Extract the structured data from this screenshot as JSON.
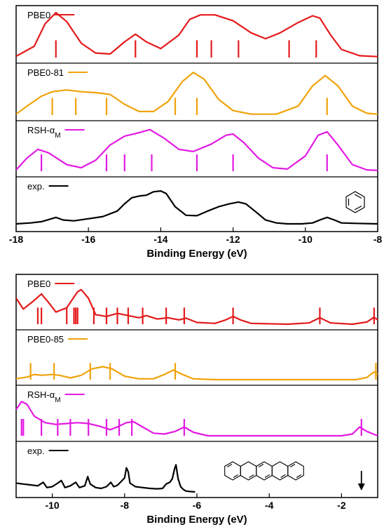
{
  "chart_data": [
    {
      "type": "line",
      "title": "",
      "xlabel": "Binding Energy (eV)",
      "xlim": [
        -18,
        -8
      ],
      "xticks": [
        "-18",
        "-16",
        "-14",
        "-12",
        "-10",
        "-8"
      ],
      "molecule": "benzene",
      "panels": [
        {
          "label": "PBE0",
          "color": "#e41a1c",
          "sticks": [
            -16.9,
            -14.7,
            -13.0,
            -12.6,
            -11.85,
            -10.45,
            -9.7
          ],
          "curve": [
            [
              -18,
              0.03
            ],
            [
              -17.5,
              0.25
            ],
            [
              -17.2,
              0.75
            ],
            [
              -16.9,
              1.0
            ],
            [
              -16.6,
              0.8
            ],
            [
              -16.2,
              0.32
            ],
            [
              -15.8,
              0.1
            ],
            [
              -15.4,
              0.08
            ],
            [
              -15.0,
              0.35
            ],
            [
              -14.7,
              0.52
            ],
            [
              -14.4,
              0.35
            ],
            [
              -14.0,
              0.2
            ],
            [
              -13.5,
              0.5
            ],
            [
              -13.2,
              0.85
            ],
            [
              -12.9,
              0.95
            ],
            [
              -12.5,
              0.95
            ],
            [
              -12.0,
              0.82
            ],
            [
              -11.5,
              0.55
            ],
            [
              -11.1,
              0.42
            ],
            [
              -10.7,
              0.55
            ],
            [
              -10.2,
              0.78
            ],
            [
              -9.8,
              0.93
            ],
            [
              -9.6,
              0.88
            ],
            [
              -9.3,
              0.5
            ],
            [
              -9.0,
              0.18
            ],
            [
              -8.5,
              0.04
            ],
            [
              -8,
              0.02
            ]
          ]
        },
        {
          "label": "PBE0-81",
          "color": "#f0a30a",
          "sticks": [
            -17.0,
            -16.35,
            -15.5,
            -13.6,
            -13.0,
            -9.4
          ],
          "curve": [
            [
              -18,
              0.02
            ],
            [
              -17.7,
              0.2
            ],
            [
              -17.3,
              0.42
            ],
            [
              -17.0,
              0.52
            ],
            [
              -16.6,
              0.56
            ],
            [
              -16.2,
              0.52
            ],
            [
              -15.8,
              0.5
            ],
            [
              -15.4,
              0.46
            ],
            [
              -15.0,
              0.24
            ],
            [
              -14.6,
              0.08
            ],
            [
              -14.2,
              0.08
            ],
            [
              -13.8,
              0.3
            ],
            [
              -13.4,
              0.75
            ],
            [
              -13.1,
              0.95
            ],
            [
              -12.8,
              0.8
            ],
            [
              -12.4,
              0.35
            ],
            [
              -12.0,
              0.1
            ],
            [
              -11.5,
              0.02
            ],
            [
              -10.8,
              0.02
            ],
            [
              -10.2,
              0.2
            ],
            [
              -9.8,
              0.65
            ],
            [
              -9.45,
              0.88
            ],
            [
              -9.1,
              0.65
            ],
            [
              -8.7,
              0.2
            ],
            [
              -8.3,
              0.04
            ],
            [
              -8,
              0.02
            ]
          ]
        },
        {
          "label": "RSH-α",
          "label_sub": "M",
          "color": "#e31ae3",
          "sticks": [
            -17.3,
            -15.5,
            -15.0,
            -14.25,
            -13.0,
            -12.0,
            -9.4
          ],
          "curve": [
            [
              -18,
              0.03
            ],
            [
              -17.7,
              0.3
            ],
            [
              -17.4,
              0.5
            ],
            [
              -17.1,
              0.42
            ],
            [
              -16.6,
              0.15
            ],
            [
              -16.2,
              0.08
            ],
            [
              -15.8,
              0.25
            ],
            [
              -15.4,
              0.6
            ],
            [
              -15.0,
              0.8
            ],
            [
              -14.6,
              0.88
            ],
            [
              -14.3,
              0.95
            ],
            [
              -13.9,
              0.75
            ],
            [
              -13.5,
              0.5
            ],
            [
              -13.1,
              0.45
            ],
            [
              -12.6,
              0.62
            ],
            [
              -12.2,
              0.82
            ],
            [
              -12.0,
              0.85
            ],
            [
              -11.7,
              0.65
            ],
            [
              -11.3,
              0.3
            ],
            [
              -10.9,
              0.08
            ],
            [
              -10.5,
              0.05
            ],
            [
              -10.0,
              0.35
            ],
            [
              -9.65,
              0.82
            ],
            [
              -9.4,
              0.9
            ],
            [
              -9.1,
              0.6
            ],
            [
              -8.7,
              0.15
            ],
            [
              -8.3,
              0.03
            ],
            [
              -8,
              0.02
            ]
          ]
        },
        {
          "label": "exp.",
          "color": "#000000",
          "sticks": [],
          "curve": [
            [
              -18,
              0.05
            ],
            [
              -17.6,
              0.07
            ],
            [
              -17.3,
              0.1
            ],
            [
              -17.1,
              0.15
            ],
            [
              -16.9,
              0.2
            ],
            [
              -16.7,
              0.14
            ],
            [
              -16.4,
              0.12
            ],
            [
              -16.0,
              0.17
            ],
            [
              -15.6,
              0.22
            ],
            [
              -15.2,
              0.35
            ],
            [
              -15.0,
              0.52
            ],
            [
              -14.8,
              0.66
            ],
            [
              -14.6,
              0.7
            ],
            [
              -14.4,
              0.72
            ],
            [
              -14.2,
              0.8
            ],
            [
              -14.0,
              0.82
            ],
            [
              -13.85,
              0.76
            ],
            [
              -13.6,
              0.45
            ],
            [
              -13.3,
              0.25
            ],
            [
              -13.0,
              0.24
            ],
            [
              -12.7,
              0.35
            ],
            [
              -12.4,
              0.45
            ],
            [
              -12.1,
              0.52
            ],
            [
              -11.85,
              0.56
            ],
            [
              -11.65,
              0.52
            ],
            [
              -11.4,
              0.35
            ],
            [
              -11.1,
              0.14
            ],
            [
              -10.8,
              0.07
            ],
            [
              -10.5,
              0.05
            ],
            [
              -10.1,
              0.05
            ],
            [
              -9.8,
              0.07
            ],
            [
              -9.6,
              0.14
            ],
            [
              -9.4,
              0.2
            ],
            [
              -9.2,
              0.14
            ],
            [
              -9.0,
              0.07
            ],
            [
              -8.6,
              0.06
            ],
            [
              -8,
              0.05
            ]
          ]
        }
      ]
    },
    {
      "type": "line",
      "title": "",
      "xlabel": "Binding Energy (eV)",
      "xlim": [
        -11,
        -1
      ],
      "xticks": [
        "-10",
        "-8",
        "-6",
        "-4",
        "-2"
      ],
      "molecule": "pentacene",
      "panels": [
        {
          "label": "PBE0",
          "color": "#e41a1c",
          "sticks": [
            -10.4,
            -10.3,
            -9.6,
            -9.4,
            -9.35,
            -9.3,
            -8.85,
            -8.5,
            -8.2,
            -7.9,
            -7.5,
            -6.85,
            -6.35,
            -5.0,
            -2.6,
            -1.1
          ],
          "curve": [
            [
              -11,
              0.6
            ],
            [
              -10.8,
              0.35
            ],
            [
              -10.5,
              0.55
            ],
            [
              -10.3,
              0.7
            ],
            [
              -10.1,
              0.5
            ],
            [
              -9.9,
              0.28
            ],
            [
              -9.6,
              0.38
            ],
            [
              -9.3,
              0.75
            ],
            [
              -9.2,
              0.8
            ],
            [
              -9.0,
              0.6
            ],
            [
              -8.8,
              0.22
            ],
            [
              -8.5,
              0.18
            ],
            [
              -8.2,
              0.25
            ],
            [
              -7.9,
              0.2
            ],
            [
              -7.6,
              0.15
            ],
            [
              -7.4,
              0.2
            ],
            [
              -7.1,
              0.12
            ],
            [
              -6.8,
              0.15
            ],
            [
              -6.5,
              0.1
            ],
            [
              -6.3,
              0.14
            ],
            [
              -6.0,
              0.04
            ],
            [
              -5.5,
              0.02
            ],
            [
              -5.2,
              0.1
            ],
            [
              -5.0,
              0.18
            ],
            [
              -4.8,
              0.1
            ],
            [
              -4.5,
              0.02
            ],
            [
              -3.5,
              0.0
            ],
            [
              -2.9,
              0.03
            ],
            [
              -2.6,
              0.15
            ],
            [
              -2.3,
              0.03
            ],
            [
              -1.7,
              0.0
            ],
            [
              -1.3,
              0.05
            ],
            [
              -1.1,
              0.16
            ],
            [
              -1,
              0.1
            ]
          ]
        },
        {
          "label": "PBE0-85",
          "color": "#f0a30a",
          "sticks": [
            -10.6,
            -9.95,
            -8.95,
            -8.4,
            -6.6,
            -1.05
          ],
          "curve": [
            [
              -11,
              0.02
            ],
            [
              -10.7,
              0.06
            ],
            [
              -10.5,
              0.12
            ],
            [
              -10.3,
              0.1
            ],
            [
              -10.0,
              0.12
            ],
            [
              -9.8,
              0.1
            ],
            [
              -9.5,
              0.04
            ],
            [
              -9.2,
              0.1
            ],
            [
              -8.9,
              0.25
            ],
            [
              -8.6,
              0.3
            ],
            [
              -8.35,
              0.25
            ],
            [
              -8.0,
              0.08
            ],
            [
              -7.6,
              0.02
            ],
            [
              -7.2,
              0.02
            ],
            [
              -6.9,
              0.12
            ],
            [
              -6.65,
              0.22
            ],
            [
              -6.4,
              0.12
            ],
            [
              -6.1,
              0.02
            ],
            [
              -5.5,
              0.0
            ],
            [
              -1.6,
              0.0
            ],
            [
              -1.3,
              0.05
            ],
            [
              -1.1,
              0.18
            ],
            [
              -1,
              0.12
            ]
          ]
        },
        {
          "label": "RSH-α",
          "label_sub": "M",
          "color": "#e31ae3",
          "sticks": [
            -10.85,
            -10.8,
            -10.3,
            -9.85,
            -9.5,
            -9.0,
            -8.5,
            -8.15,
            -7.8,
            -6.35,
            -1.45
          ],
          "curve": [
            [
              -11,
              0.6
            ],
            [
              -10.85,
              0.78
            ],
            [
              -10.7,
              0.72
            ],
            [
              -10.5,
              0.45
            ],
            [
              -10.2,
              0.3
            ],
            [
              -9.9,
              0.26
            ],
            [
              -9.6,
              0.28
            ],
            [
              -9.3,
              0.3
            ],
            [
              -9.0,
              0.28
            ],
            [
              -8.7,
              0.22
            ],
            [
              -8.4,
              0.14
            ],
            [
              -8.2,
              0.2
            ],
            [
              -7.95,
              0.3
            ],
            [
              -7.75,
              0.32
            ],
            [
              -7.5,
              0.2
            ],
            [
              -7.2,
              0.06
            ],
            [
              -6.9,
              0.04
            ],
            [
              -6.6,
              0.1
            ],
            [
              -6.35,
              0.2
            ],
            [
              -6.1,
              0.08
            ],
            [
              -5.7,
              0.0
            ],
            [
              -2.0,
              0.0
            ],
            [
              -1.7,
              0.04
            ],
            [
              -1.5,
              0.2
            ],
            [
              -1.3,
              0.1
            ],
            [
              -1,
              0.0
            ]
          ]
        },
        {
          "label": "exp.",
          "color": "#000000",
          "sticks": [],
          "arrow_at": -1.45,
          "curve": [
            [
              -11,
              0.2
            ],
            [
              -10.8,
              0.18
            ],
            [
              -10.6,
              0.16
            ],
            [
              -10.4,
              0.14
            ],
            [
              -10.25,
              0.22
            ],
            [
              -10.15,
              0.1
            ],
            [
              -10.0,
              0.12
            ],
            [
              -9.85,
              0.2
            ],
            [
              -9.75,
              0.26
            ],
            [
              -9.65,
              0.1
            ],
            [
              -9.5,
              0.14
            ],
            [
              -9.35,
              0.22
            ],
            [
              -9.25,
              0.1
            ],
            [
              -9.1,
              0.14
            ],
            [
              -9.02,
              0.35
            ],
            [
              -8.95,
              0.18
            ],
            [
              -8.8,
              0.1
            ],
            [
              -8.65,
              0.08
            ],
            [
              -8.5,
              0.12
            ],
            [
              -8.38,
              0.22
            ],
            [
              -8.3,
              0.12
            ],
            [
              -8.2,
              0.15
            ],
            [
              -8.08,
              0.25
            ],
            [
              -8.0,
              0.32
            ],
            [
              -7.95,
              0.55
            ],
            [
              -7.9,
              0.46
            ],
            [
              -7.85,
              0.2
            ],
            [
              -7.7,
              0.12
            ],
            [
              -7.5,
              0.1
            ],
            [
              -7.3,
              0.08
            ],
            [
              -7.1,
              0.07
            ],
            [
              -6.95,
              0.08
            ],
            [
              -6.85,
              0.18
            ],
            [
              -6.75,
              0.22
            ],
            [
              -6.68,
              0.3
            ],
            [
              -6.62,
              0.52
            ],
            [
              -6.58,
              0.62
            ],
            [
              -6.52,
              0.3
            ],
            [
              -6.45,
              0.12
            ],
            [
              -6.38,
              0.06
            ],
            [
              -6.3,
              0.02
            ],
            [
              -6.2,
              0.01
            ],
            [
              -6.05,
              0.0
            ]
          ]
        }
      ]
    }
  ]
}
